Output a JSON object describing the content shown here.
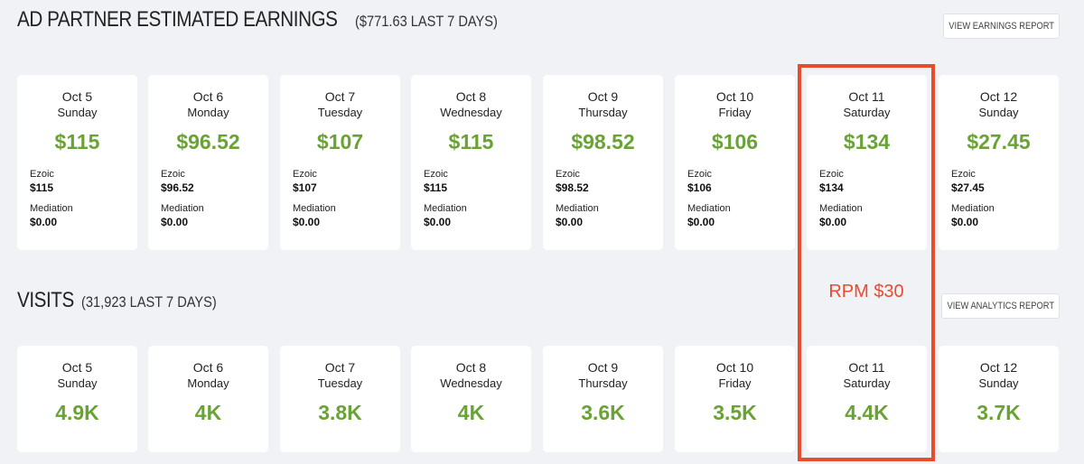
{
  "earnings": {
    "title": "AD PARTNER ESTIMATED EARNINGS",
    "subtitle": "($771.63 LAST 7 DAYS)",
    "button": "VIEW EARNINGS REPORT",
    "ezoic_label": "Ezoic",
    "mediation_label": "Mediation",
    "days": [
      {
        "date": "Oct 5",
        "dow": "Sunday",
        "total": "$115",
        "ezoic": "$115",
        "mediation": "$0.00"
      },
      {
        "date": "Oct 6",
        "dow": "Monday",
        "total": "$96.52",
        "ezoic": "$96.52",
        "mediation": "$0.00"
      },
      {
        "date": "Oct 7",
        "dow": "Tuesday",
        "total": "$107",
        "ezoic": "$107",
        "mediation": "$0.00"
      },
      {
        "date": "Oct 8",
        "dow": "Wednesday",
        "total": "$115",
        "ezoic": "$115",
        "mediation": "$0.00"
      },
      {
        "date": "Oct 9",
        "dow": "Thursday",
        "total": "$98.52",
        "ezoic": "$98.52",
        "mediation": "$0.00"
      },
      {
        "date": "Oct 10",
        "dow": "Friday",
        "total": "$106",
        "ezoic": "$106",
        "mediation": "$0.00"
      },
      {
        "date": "Oct 11",
        "dow": "Saturday",
        "total": "$134",
        "ezoic": "$134",
        "mediation": "$0.00"
      },
      {
        "date": "Oct 12",
        "dow": "Sunday",
        "total": "$27.45",
        "ezoic": "$27.45",
        "mediation": "$0.00"
      }
    ]
  },
  "visits": {
    "title": "VISITS",
    "subtitle": "(31,923 LAST 7 DAYS)",
    "button": "VIEW ANALYTICS REPORT",
    "days": [
      {
        "date": "Oct 5",
        "dow": "Sunday",
        "total": "4.9K"
      },
      {
        "date": "Oct 6",
        "dow": "Monday",
        "total": "4K"
      },
      {
        "date": "Oct 7",
        "dow": "Tuesday",
        "total": "3.8K"
      },
      {
        "date": "Oct 8",
        "dow": "Wednesday",
        "total": "4K"
      },
      {
        "date": "Oct 9",
        "dow": "Thursday",
        "total": "3.6K"
      },
      {
        "date": "Oct 10",
        "dow": "Friday",
        "total": "3.5K"
      },
      {
        "date": "Oct 11",
        "dow": "Saturday",
        "total": "4.4K"
      },
      {
        "date": "Oct 12",
        "dow": "Sunday",
        "total": "3.7K"
      }
    ]
  },
  "annotation": {
    "rpm": "RPM $30",
    "highlight_color": "#e74c2f"
  },
  "colors": {
    "accent_green": "#6aa335",
    "background": "#f1f2f6"
  }
}
